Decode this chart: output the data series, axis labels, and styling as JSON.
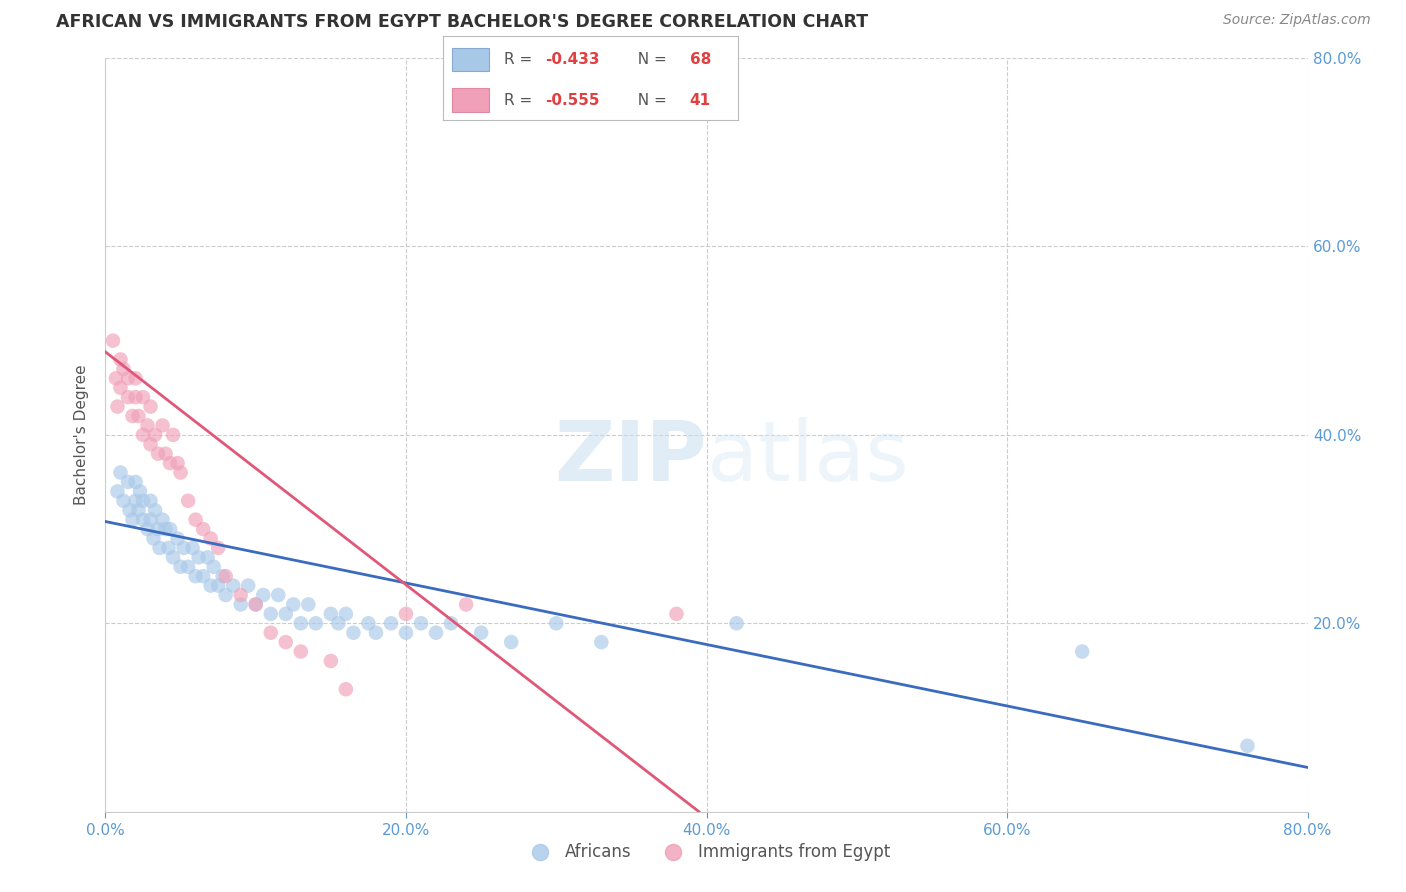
{
  "title": "AFRICAN VS IMMIGRANTS FROM EGYPT BACHELOR'S DEGREE CORRELATION CHART",
  "source": "Source: ZipAtlas.com",
  "ylabel": "Bachelor's Degree",
  "watermark_zip": "ZIP",
  "watermark_atlas": "atlas",
  "xlim": [
    0.0,
    0.8
  ],
  "ylim": [
    0.0,
    0.8
  ],
  "xticks": [
    0.0,
    0.2,
    0.4,
    0.6,
    0.8
  ],
  "yticks": [
    0.2,
    0.4,
    0.6,
    0.8
  ],
  "background_color": "#ffffff",
  "grid_color": "#cccccc",
  "blue_scatter_color": "#a8c8e8",
  "pink_scatter_color": "#f0a0b8",
  "blue_line_color": "#3a6bbf",
  "pink_line_color": "#e05878",
  "legend_r_blue": "-0.433",
  "legend_n_blue": "68",
  "legend_r_pink": "-0.555",
  "legend_n_pink": "41",
  "legend_label_blue": "Africans",
  "legend_label_pink": "Immigrants from Egypt",
  "tick_color": "#5b9bd5",
  "africans_x": [
    0.008,
    0.01,
    0.012,
    0.015,
    0.016,
    0.018,
    0.02,
    0.02,
    0.022,
    0.023,
    0.025,
    0.025,
    0.028,
    0.03,
    0.03,
    0.032,
    0.033,
    0.035,
    0.036,
    0.038,
    0.04,
    0.042,
    0.043,
    0.045,
    0.048,
    0.05,
    0.052,
    0.055,
    0.058,
    0.06,
    0.062,
    0.065,
    0.068,
    0.07,
    0.072,
    0.075,
    0.078,
    0.08,
    0.085,
    0.09,
    0.095,
    0.1,
    0.105,
    0.11,
    0.115,
    0.12,
    0.125,
    0.13,
    0.135,
    0.14,
    0.15,
    0.155,
    0.16,
    0.165,
    0.175,
    0.18,
    0.19,
    0.2,
    0.21,
    0.22,
    0.23,
    0.25,
    0.27,
    0.3,
    0.33,
    0.42,
    0.65,
    0.76
  ],
  "africans_y": [
    0.34,
    0.36,
    0.33,
    0.35,
    0.32,
    0.31,
    0.35,
    0.33,
    0.32,
    0.34,
    0.31,
    0.33,
    0.3,
    0.33,
    0.31,
    0.29,
    0.32,
    0.3,
    0.28,
    0.31,
    0.3,
    0.28,
    0.3,
    0.27,
    0.29,
    0.26,
    0.28,
    0.26,
    0.28,
    0.25,
    0.27,
    0.25,
    0.27,
    0.24,
    0.26,
    0.24,
    0.25,
    0.23,
    0.24,
    0.22,
    0.24,
    0.22,
    0.23,
    0.21,
    0.23,
    0.21,
    0.22,
    0.2,
    0.22,
    0.2,
    0.21,
    0.2,
    0.21,
    0.19,
    0.2,
    0.19,
    0.2,
    0.19,
    0.2,
    0.19,
    0.2,
    0.19,
    0.18,
    0.2,
    0.18,
    0.2,
    0.17,
    0.07
  ],
  "egypt_x": [
    0.005,
    0.007,
    0.008,
    0.01,
    0.01,
    0.012,
    0.015,
    0.015,
    0.018,
    0.02,
    0.02,
    0.022,
    0.025,
    0.025,
    0.028,
    0.03,
    0.03,
    0.033,
    0.035,
    0.038,
    0.04,
    0.043,
    0.045,
    0.048,
    0.05,
    0.055,
    0.06,
    0.065,
    0.07,
    0.075,
    0.08,
    0.09,
    0.1,
    0.11,
    0.12,
    0.13,
    0.15,
    0.16,
    0.2,
    0.24,
    0.38
  ],
  "egypt_y": [
    0.5,
    0.46,
    0.43,
    0.48,
    0.45,
    0.47,
    0.44,
    0.46,
    0.42,
    0.44,
    0.46,
    0.42,
    0.4,
    0.44,
    0.41,
    0.39,
    0.43,
    0.4,
    0.38,
    0.41,
    0.38,
    0.37,
    0.4,
    0.37,
    0.36,
    0.33,
    0.31,
    0.3,
    0.29,
    0.28,
    0.25,
    0.23,
    0.22,
    0.19,
    0.18,
    0.17,
    0.16,
    0.13,
    0.21,
    0.22,
    0.21
  ],
  "blue_trendline_x": [
    0.0,
    0.8
  ],
  "blue_trendline_y": [
    0.308,
    0.047
  ],
  "pink_trendline_x": [
    0.0,
    0.395
  ],
  "pink_trendline_y": [
    0.488,
    0.0
  ]
}
